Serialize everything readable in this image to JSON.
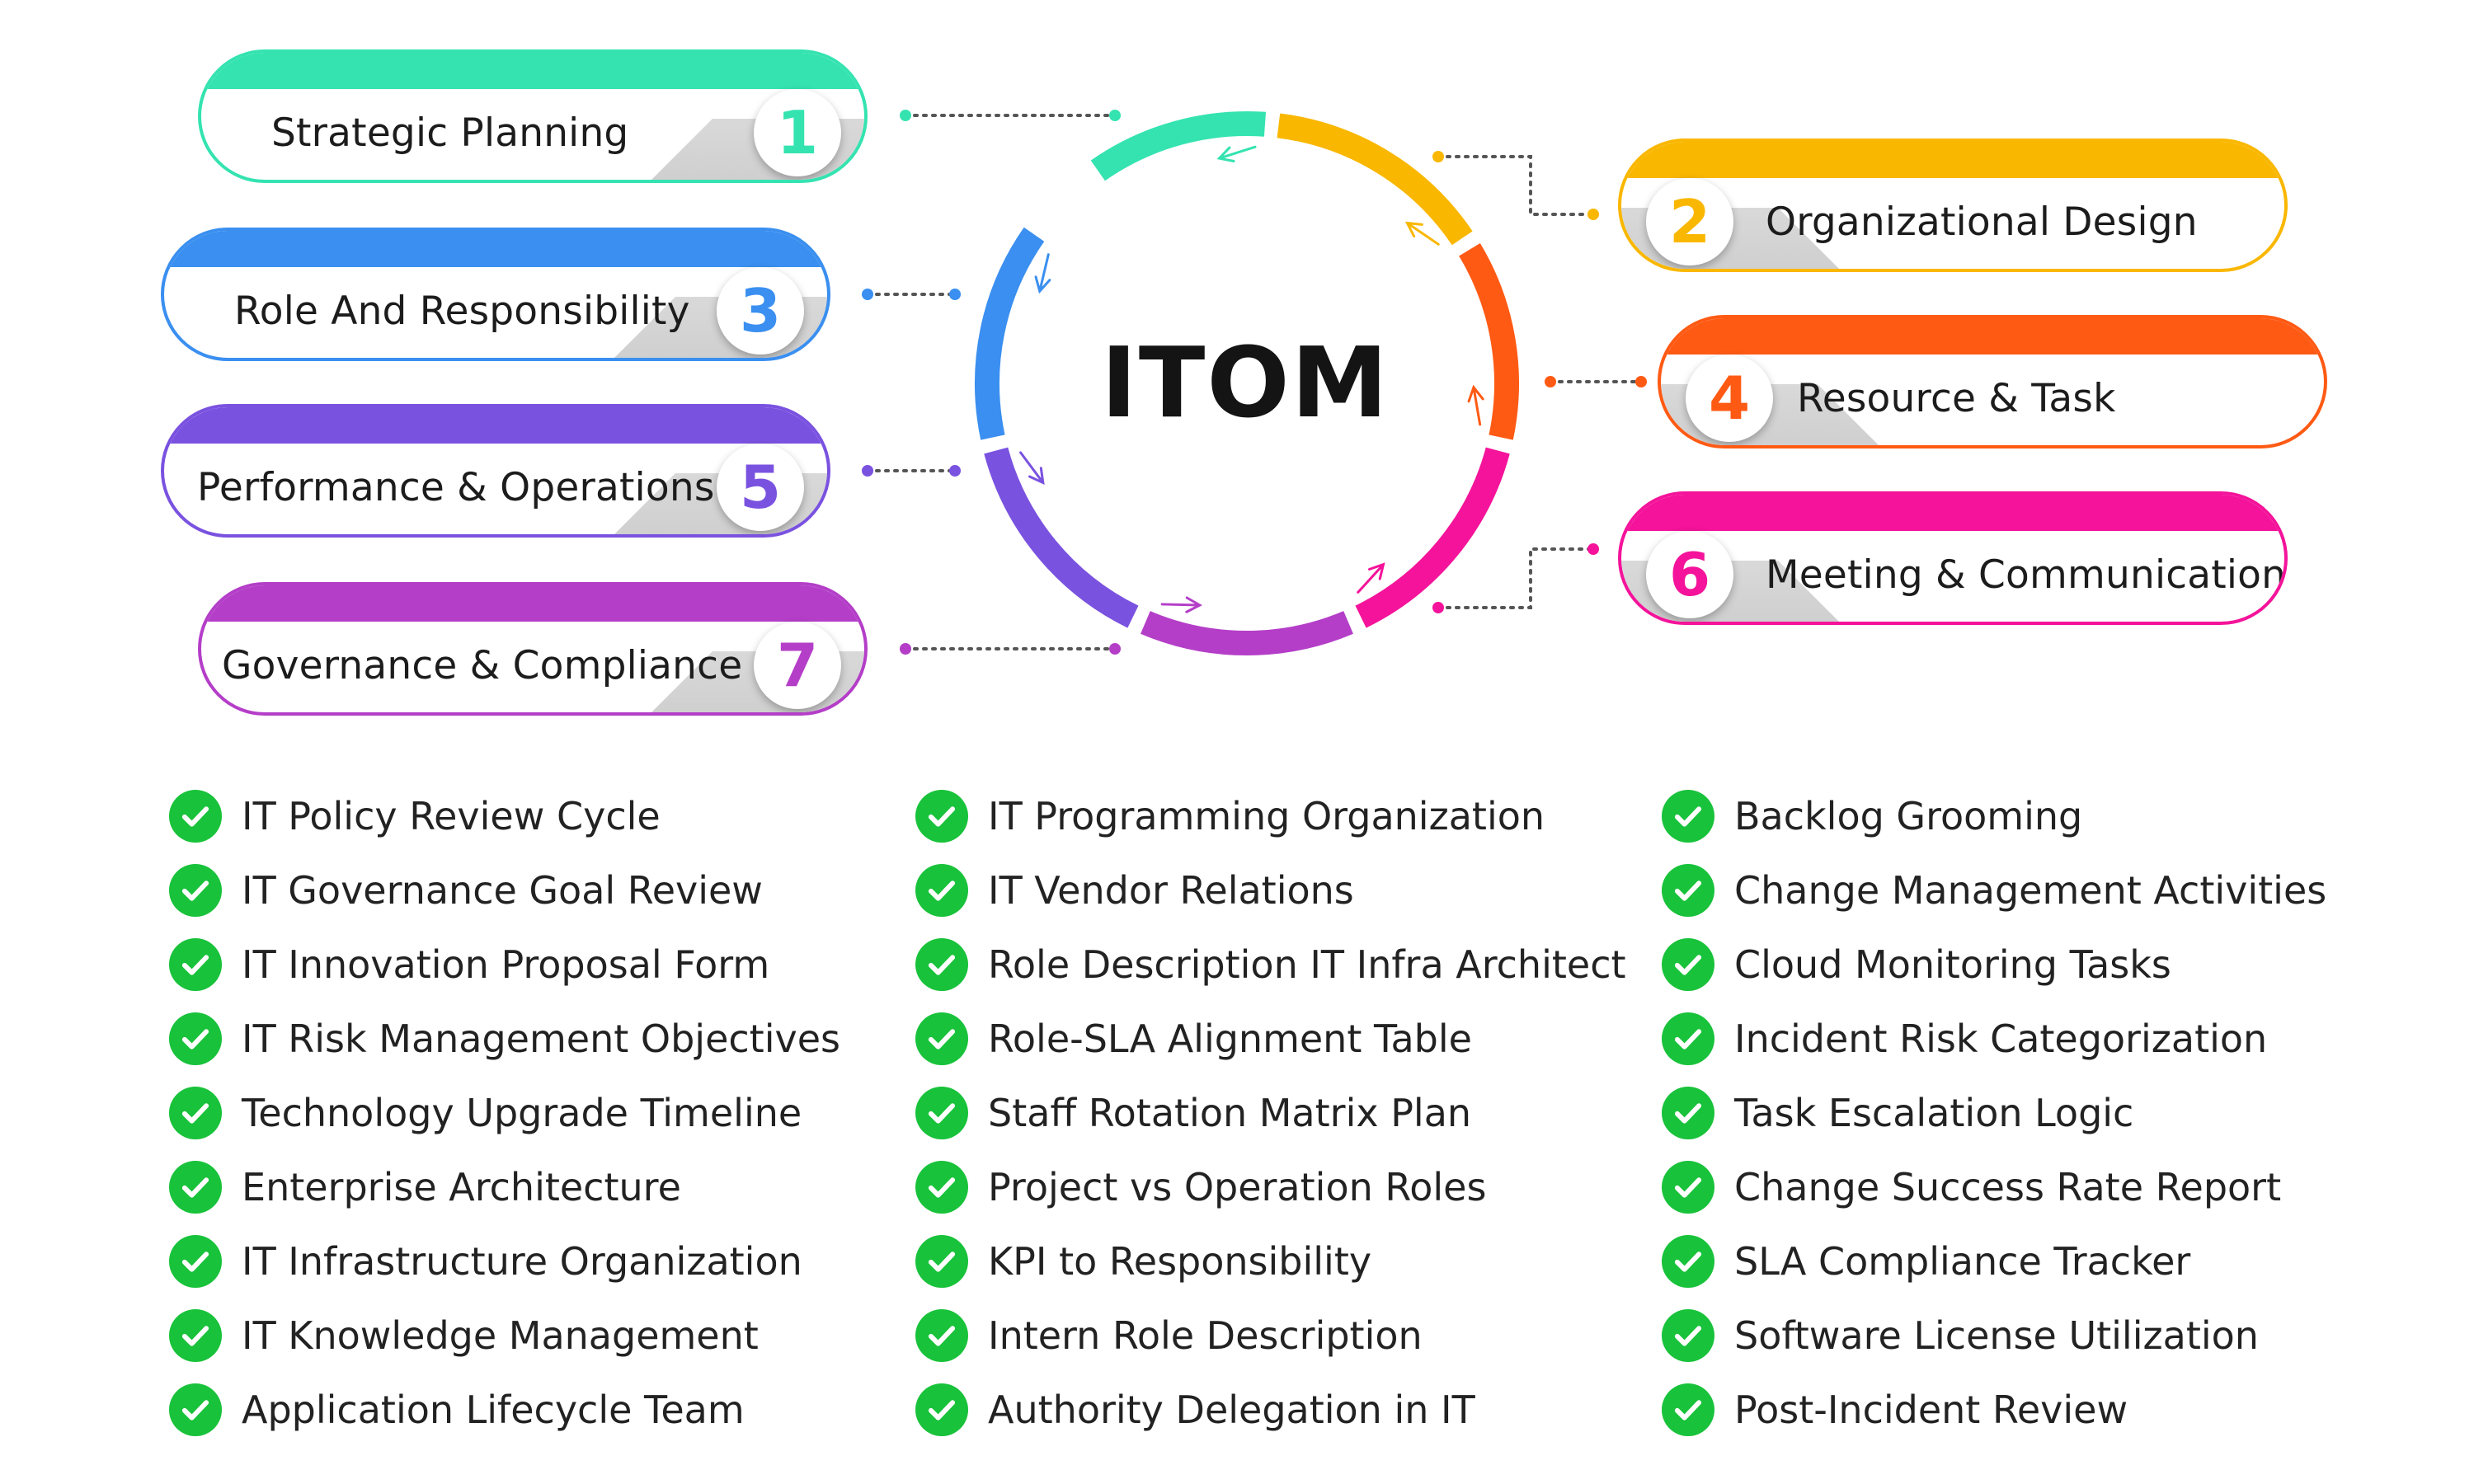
{
  "center": {
    "title": "ITOM"
  },
  "items": [
    {
      "number": "1",
      "label": "Strategic Planning",
      "color": "#34e3b0"
    },
    {
      "number": "2",
      "label": "Organizational Design",
      "color": "#f9b700"
    },
    {
      "number": "3",
      "label": "Role And Responsibility",
      "color": "#3a8ff0"
    },
    {
      "number": "4",
      "label": "Resource & Task",
      "color": "#ff5a14"
    },
    {
      "number": "5",
      "label": "Performance & Operations",
      "color": "#7a52e0"
    },
    {
      "number": "6",
      "label": "Meeting & Communication",
      "color": "#f4139a"
    },
    {
      "number": "7",
      "label": "Governance & Compliance",
      "color": "#b43ec8"
    }
  ],
  "checklists": [
    [
      "IT Policy Review Cycle",
      "IT Governance Goal Review",
      "IT Innovation Proposal Form",
      "IT Risk Management Objectives",
      "Technology Upgrade Timeline",
      "Enterprise Architecture",
      "IT Infrastructure Organization",
      "IT Knowledge Management",
      "Application Lifecycle Team"
    ],
    [
      "IT Programming Organization",
      "IT Vendor Relations",
      "Role Description IT Infra Architect",
      "Role-SLA Alignment Table",
      "Staff Rotation Matrix Plan",
      "Project vs Operation Roles",
      "KPI to Responsibility",
      "Intern Role Description",
      "Authority Delegation in IT"
    ],
    [
      "Backlog Grooming",
      "Change Management Activities",
      "Cloud Monitoring Tasks",
      "Incident Risk Categorization",
      "Task Escalation Logic",
      "Change Success Rate Report",
      "SLA Compliance Tracker",
      "Software License Utilization",
      "Post-Incident Review"
    ]
  ],
  "icons": {
    "check": "check-circle-icon",
    "arrow": "arrow-icon"
  }
}
